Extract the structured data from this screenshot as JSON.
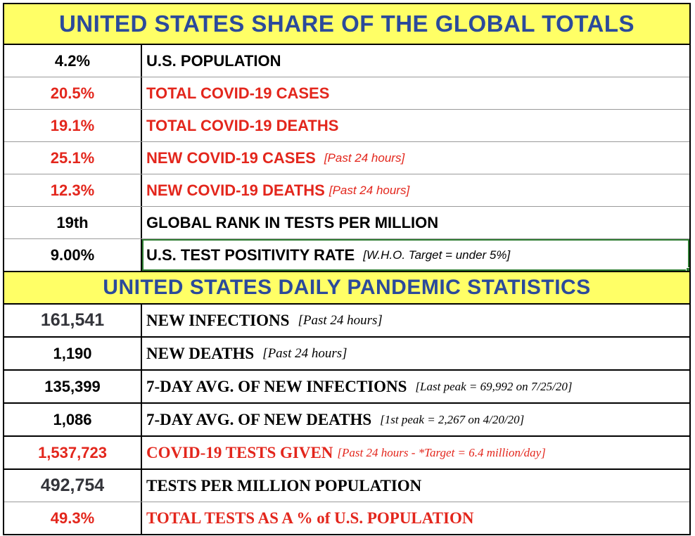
{
  "share_section": {
    "title": "UNITED STATES SHARE OF THE GLOBAL TOTALS",
    "rows": [
      {
        "value": "4.2%",
        "label": "U.S. POPULATION",
        "note": "",
        "color": "#000000"
      },
      {
        "value": "20.5%",
        "label": "TOTAL COVID-19 CASES",
        "note": "",
        "color": "#e3261c"
      },
      {
        "value": "19.1%",
        "label": "TOTAL COVID-19 DEATHS",
        "note": "",
        "color": "#e3261c"
      },
      {
        "value": "25.1%",
        "label": "NEW COVID-19 CASES",
        "note": "[Past 24 hours]",
        "color": "#e3261c"
      },
      {
        "value": "12.3%",
        "label": "NEW COVID-19 DEATHS",
        "note": "[Past 24 hours]",
        "color": "#e3261c"
      },
      {
        "value": "19th",
        "label": "GLOBAL RANK IN TESTS PER MILLION",
        "note": "",
        "color": "#000000"
      },
      {
        "value": "9.00%",
        "label": "U.S. TEST POSITIVITY RATE",
        "note": "[W.H.O. Target = under 5%]",
        "color": "#000000"
      }
    ]
  },
  "daily_section": {
    "title": "UNITED STATES DAILY PANDEMIC STATISTICS",
    "rows": [
      {
        "value": "161,541",
        "label": "NEW INFECTIONS",
        "note": "[Past 24 hours]"
      },
      {
        "value": "1,190",
        "label": "NEW DEATHS",
        "note": "[Past 24 hours]"
      },
      {
        "value": "135,399",
        "label": "7-DAY AVG. OF NEW INFECTIONS",
        "note": "[Last peak = 69,992 on 7/25/20]"
      },
      {
        "value": "1,086",
        "label": "7-DAY AVG. OF NEW DEATHS",
        "note": "[1st peak = 2,267 on 4/20/20]"
      },
      {
        "value": "1,537,723",
        "label": "COVID-19  TESTS GIVEN",
        "note": "[Past 24 hours - *Target = 6.4 million/day]"
      },
      {
        "value": "492,754",
        "label": "TESTS PER MILLION POPULATION",
        "note": ""
      },
      {
        "value": "49.3%",
        "label": "TOTAL TESTS AS A % of U.S. POPULATION",
        "note": ""
      }
    ]
  },
  "colors": {
    "header_bg": "#ffff66",
    "header_text": "#2b4a9b",
    "red": "#e3261c",
    "selection": "#2e7d32"
  }
}
